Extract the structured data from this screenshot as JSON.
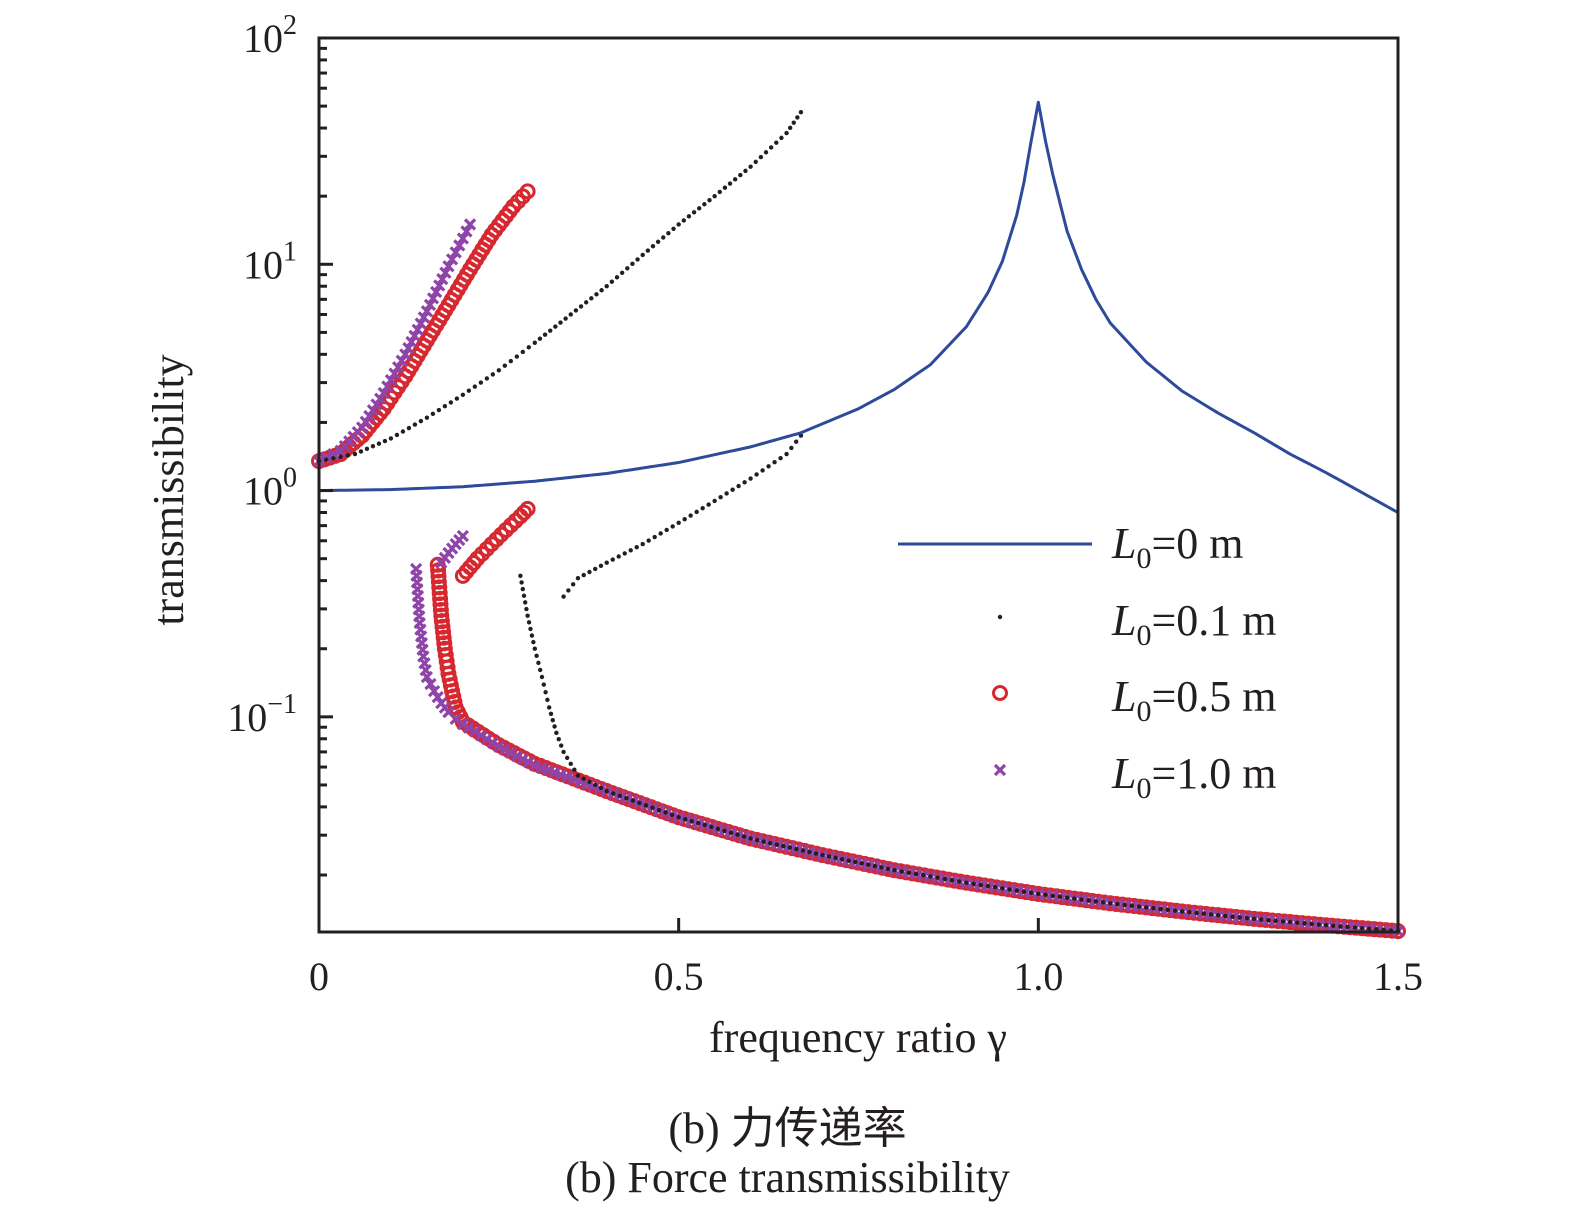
{
  "chart_data": {
    "type": "scatter",
    "title": "",
    "xlabel": "frequency ratio γ",
    "ylabel": "transmissibility",
    "xscale": "linear",
    "yscale": "log",
    "xlim": [
      0,
      1.5
    ],
    "ylim": [
      0.0112,
      100
    ],
    "x_ticks": [
      {
        "value": 0,
        "label": "0"
      },
      {
        "value": 0.5,
        "label": "0.5"
      },
      {
        "value": 1.0,
        "label": "1.0"
      },
      {
        "value": 1.5,
        "label": "1.5"
      }
    ],
    "y_ticks": [
      {
        "value": 100,
        "base": "10",
        "exp": "2"
      },
      {
        "value": 10,
        "base": "10",
        "exp": "1"
      },
      {
        "value": 1,
        "base": "10",
        "exp": "0"
      },
      {
        "value": 0.1,
        "base": "10",
        "exp": "−1"
      }
    ],
    "grid": false,
    "legend_position": "center-right",
    "series": [
      {
        "name": "L0=0 m",
        "legend": {
          "sym": "L",
          "sub": "0",
          "rest": "=0 m"
        },
        "style": "line",
        "color": "#2e4a9a",
        "points": [
          [
            0,
            1.0
          ],
          [
            0.1,
            1.01
          ],
          [
            0.2,
            1.04
          ],
          [
            0.3,
            1.1
          ],
          [
            0.4,
            1.19
          ],
          [
            0.5,
            1.33
          ],
          [
            0.6,
            1.56
          ],
          [
            0.67,
            1.8
          ],
          [
            0.75,
            2.3
          ],
          [
            0.8,
            2.8
          ],
          [
            0.85,
            3.6
          ],
          [
            0.9,
            5.3
          ],
          [
            0.93,
            7.5
          ],
          [
            0.95,
            10.3
          ],
          [
            0.97,
            16.5
          ],
          [
            0.98,
            23
          ],
          [
            0.99,
            35
          ],
          [
            1.0,
            52
          ],
          [
            1.01,
            35
          ],
          [
            1.02,
            25
          ],
          [
            1.04,
            14
          ],
          [
            1.06,
            9.5
          ],
          [
            1.08,
            7
          ],
          [
            1.1,
            5.5
          ],
          [
            1.15,
            3.7
          ],
          [
            1.2,
            2.75
          ],
          [
            1.25,
            2.2
          ],
          [
            1.3,
            1.8
          ],
          [
            1.35,
            1.45
          ],
          [
            1.4,
            1.2
          ],
          [
            1.45,
            0.98
          ],
          [
            1.5,
            0.8
          ]
        ]
      },
      {
        "name": "L0=0.1 m",
        "legend": {
          "sym": "L",
          "sub": "0",
          "rest": "=0.1 m"
        },
        "style": "dot",
        "color": "#231f20",
        "branches": [
          [
            [
              0.0,
              1.35
            ],
            [
              0.05,
              1.45
            ],
            [
              0.1,
              1.7
            ],
            [
              0.15,
              2.1
            ],
            [
              0.2,
              2.65
            ],
            [
              0.25,
              3.4
            ],
            [
              0.3,
              4.5
            ],
            [
              0.35,
              6.0
            ],
            [
              0.4,
              8.0
            ],
            [
              0.45,
              11
            ],
            [
              0.5,
              15
            ],
            [
              0.55,
              20
            ],
            [
              0.6,
              27
            ],
            [
              0.65,
              38
            ],
            [
              0.67,
              47
            ]
          ],
          [
            [
              0.34,
              0.34
            ],
            [
              0.36,
              0.41
            ],
            [
              0.4,
              0.48
            ],
            [
              0.45,
              0.58
            ],
            [
              0.5,
              0.72
            ],
            [
              0.55,
              0.9
            ],
            [
              0.6,
              1.13
            ],
            [
              0.65,
              1.45
            ],
            [
              0.67,
              1.75
            ]
          ],
          [
            [
              0.28,
              0.42
            ],
            [
              0.29,
              0.28
            ],
            [
              0.3,
              0.2
            ],
            [
              0.31,
              0.15
            ],
            [
              0.32,
              0.11
            ],
            [
              0.33,
              0.085
            ],
            [
              0.34,
              0.07
            ],
            [
              0.35,
              0.062
            ],
            [
              0.36,
              0.055
            ]
          ],
          [
            [
              0.36,
              0.055
            ],
            [
              0.4,
              0.047
            ],
            [
              0.5,
              0.036
            ],
            [
              0.6,
              0.029
            ],
            [
              0.7,
              0.0245
            ],
            [
              0.8,
              0.021
            ],
            [
              0.9,
              0.0185
            ],
            [
              1.0,
              0.0165
            ],
            [
              1.1,
              0.015
            ],
            [
              1.2,
              0.0138
            ],
            [
              1.3,
              0.0128
            ],
            [
              1.4,
              0.012
            ],
            [
              1.5,
              0.0113
            ]
          ]
        ]
      },
      {
        "name": "L0=0.5 m",
        "legend": {
          "sym": "L",
          "sub": "0",
          "rest": "=0.5 m"
        },
        "style": "circle",
        "color": "#d7282f",
        "branches": [
          [
            [
              0.0,
              1.35
            ],
            [
              0.03,
              1.45
            ],
            [
              0.06,
              1.75
            ],
            [
              0.09,
              2.3
            ],
            [
              0.12,
              3.2
            ],
            [
              0.15,
              4.6
            ],
            [
              0.18,
              6.6
            ],
            [
              0.21,
              9.5
            ],
            [
              0.24,
              13.5
            ],
            [
              0.27,
              18
            ],
            [
              0.29,
              21
            ]
          ],
          [
            [
              0.2,
              0.42
            ],
            [
              0.22,
              0.5
            ],
            [
              0.24,
              0.58
            ],
            [
              0.26,
              0.67
            ],
            [
              0.28,
              0.77
            ],
            [
              0.29,
              0.83
            ]
          ],
          [
            [
              0.165,
              0.47
            ],
            [
              0.17,
              0.28
            ],
            [
              0.175,
              0.2
            ],
            [
              0.18,
              0.155
            ],
            [
              0.185,
              0.13
            ],
            [
              0.19,
              0.11
            ],
            [
              0.2,
              0.095
            ]
          ],
          [
            [
              0.2,
              0.095
            ],
            [
              0.25,
              0.075
            ],
            [
              0.3,
              0.062
            ],
            [
              0.4,
              0.047
            ],
            [
              0.5,
              0.036
            ],
            [
              0.6,
              0.029
            ],
            [
              0.7,
              0.0245
            ],
            [
              0.8,
              0.021
            ],
            [
              0.9,
              0.0185
            ],
            [
              1.0,
              0.0165
            ],
            [
              1.1,
              0.015
            ],
            [
              1.2,
              0.0138
            ],
            [
              1.3,
              0.0128
            ],
            [
              1.4,
              0.012
            ],
            [
              1.5,
              0.0113
            ]
          ]
        ]
      },
      {
        "name": "L0=1.0 m",
        "legend": {
          "sym": "L",
          "sub": "0",
          "rest": "=1.0 m"
        },
        "style": "cross",
        "color": "#8e44a8",
        "branches": [
          [
            [
              0.0,
              1.35
            ],
            [
              0.03,
              1.5
            ],
            [
              0.06,
              1.9
            ],
            [
              0.09,
              2.7
            ],
            [
              0.12,
              4.0
            ],
            [
              0.15,
              6.2
            ],
            [
              0.18,
              9.8
            ],
            [
              0.2,
              13
            ],
            [
              0.21,
              15
            ]
          ],
          [
            [
              0.17,
              0.48
            ],
            [
              0.18,
              0.53
            ],
            [
              0.19,
              0.58
            ],
            [
              0.2,
              0.63
            ]
          ],
          [
            [
              0.135,
              0.45
            ],
            [
              0.14,
              0.26
            ],
            [
              0.145,
              0.185
            ],
            [
              0.15,
              0.15
            ],
            [
              0.16,
              0.13
            ],
            [
              0.17,
              0.115
            ],
            [
              0.18,
              0.105
            ],
            [
              0.19,
              0.098
            ],
            [
              0.2,
              0.093
            ]
          ],
          [
            [
              0.2,
              0.093
            ],
            [
              0.25,
              0.074
            ],
            [
              0.3,
              0.061
            ],
            [
              0.4,
              0.047
            ],
            [
              0.5,
              0.036
            ],
            [
              0.6,
              0.029
            ],
            [
              0.7,
              0.0245
            ],
            [
              0.8,
              0.021
            ],
            [
              0.9,
              0.0185
            ],
            [
              1.0,
              0.0165
            ],
            [
              1.1,
              0.015
            ],
            [
              1.2,
              0.0138
            ],
            [
              1.3,
              0.0128
            ],
            [
              1.4,
              0.012
            ],
            [
              1.5,
              0.0113
            ]
          ]
        ]
      }
    ]
  },
  "captions": {
    "zh": "(b) 力传递率",
    "en": "(b) Force transmissibility"
  }
}
